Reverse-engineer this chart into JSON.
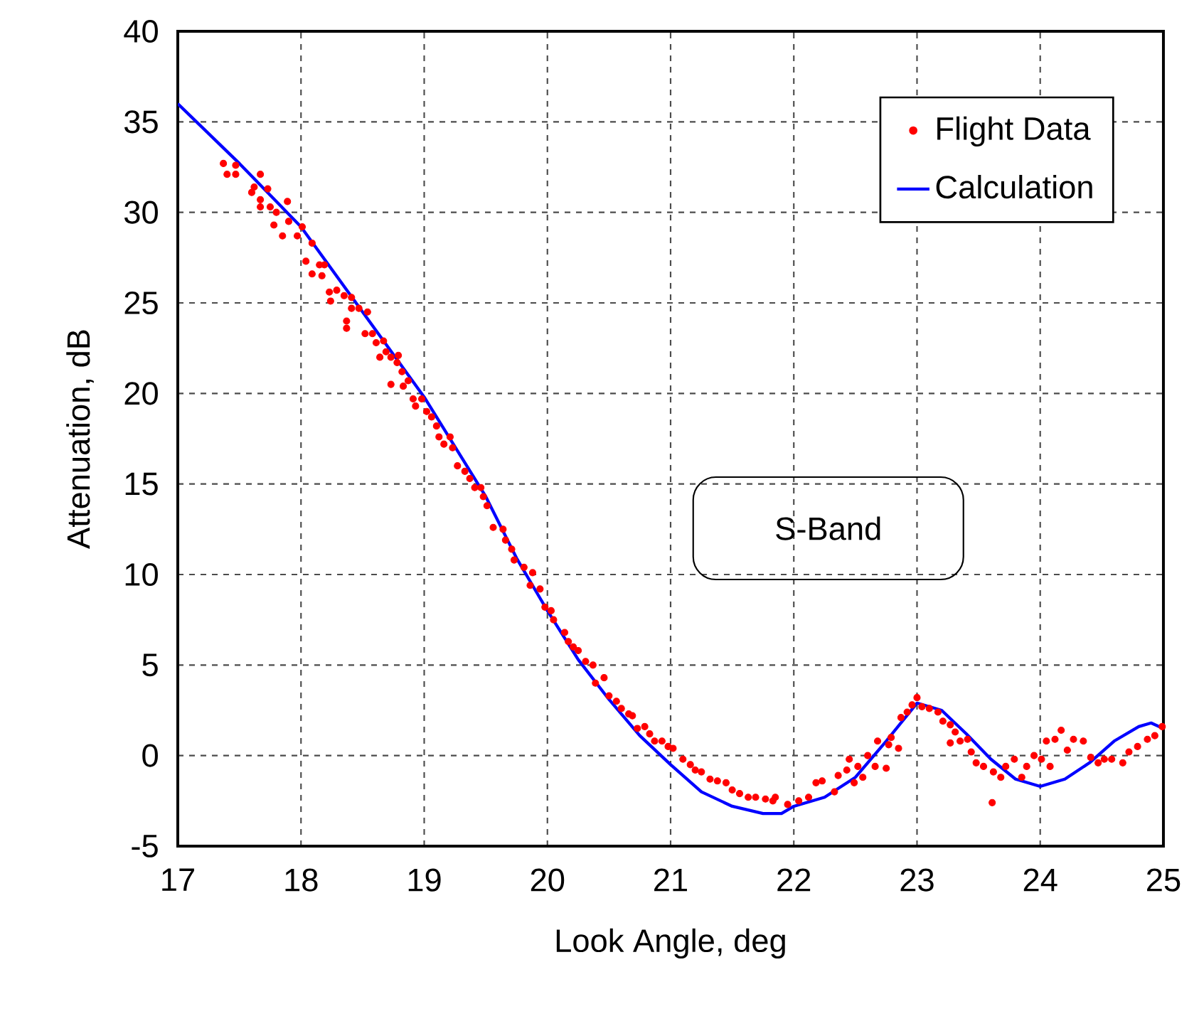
{
  "chart_data": {
    "type": "scatter",
    "xlabel": "Look Angle, deg",
    "ylabel": "Attenuation, dB",
    "xlim": [
      17,
      25
    ],
    "xticks": [
      17,
      18,
      19,
      20,
      21,
      22,
      23,
      24,
      25
    ],
    "ylim": [
      -5,
      40
    ],
    "yticks": [
      -5,
      0,
      5,
      10,
      15,
      20,
      25,
      30,
      35,
      40
    ],
    "grid": true,
    "legend": "top right",
    "annotations": [
      "S-Band"
    ],
    "series": [
      {
        "name": "Flight Data",
        "marker": "circle",
        "color": "#ff0000",
        "x": [
          17.37,
          17.47,
          17.4,
          17.47,
          17.67,
          17.62,
          17.6,
          17.73,
          17.67,
          17.67,
          17.75,
          17.89,
          17.8,
          17.78,
          17.85,
          17.9,
          17.97,
          18.01,
          18.09,
          18.04,
          18.15,
          18.19,
          18.09,
          18.17,
          18.23,
          18.29,
          18.24,
          18.35,
          18.41,
          18.37,
          18.37,
          18.41,
          18.47,
          18.54,
          18.52,
          18.58,
          18.61,
          18.67,
          18.64,
          18.69,
          18.73,
          18.79,
          18.78,
          18.73,
          18.82,
          18.83,
          18.87,
          18.91,
          18.98,
          18.93,
          19.02,
          19.06,
          19.1,
          19.12,
          19.21,
          19.16,
          19.23,
          19.27,
          19.33,
          19.37,
          19.41,
          19.46,
          19.48,
          19.51,
          19.56,
          19.64,
          19.66,
          19.71,
          19.73,
          19.81,
          19.88,
          19.86,
          19.94,
          19.98,
          20.03,
          20.05,
          20.14,
          20.17,
          20.21,
          20.25,
          20.31,
          20.37,
          20.39,
          20.46,
          20.5,
          20.56,
          20.6,
          20.66,
          20.69,
          20.73,
          20.79,
          20.83,
          20.87,
          20.93,
          20.98,
          21.02,
          21.1,
          21.16,
          21.2,
          21.25,
          21.32,
          21.38,
          21.45,
          21.5,
          21.56,
          21.63,
          21.69,
          21.77,
          21.85,
          21.83,
          21.95,
          22.04,
          22.12,
          22.18,
          22.23,
          22.33,
          22.36,
          22.43,
          22.45,
          22.49,
          22.52,
          22.56,
          22.6,
          22.66,
          22.68,
          22.75,
          22.77,
          22.79,
          22.85,
          22.87,
          22.92,
          22.96,
          23.0,
          23.04,
          23.1,
          23.17,
          23.21,
          23.27,
          23.27,
          23.31,
          23.35,
          23.41,
          23.44,
          23.48,
          23.54,
          23.61,
          23.62,
          23.68,
          23.72,
          23.79,
          23.85,
          23.89,
          23.95,
          24.01,
          24.05,
          24.08,
          24.12,
          24.17,
          24.22,
          24.27,
          24.35,
          24.41,
          24.47,
          24.52,
          24.58,
          24.67,
          24.72,
          24.79,
          24.87,
          24.93,
          24.99
        ],
        "values": [
          32.7,
          32.6,
          32.1,
          32.1,
          32.1,
          31.4,
          31.1,
          31.3,
          30.7,
          30.3,
          30.3,
          30.6,
          30.0,
          29.3,
          28.7,
          29.5,
          28.7,
          29.2,
          28.3,
          27.3,
          27.1,
          27.1,
          26.6,
          26.5,
          25.6,
          25.7,
          25.1,
          25.4,
          25.3,
          24.0,
          23.6,
          24.7,
          24.7,
          24.5,
          23.3,
          23.3,
          22.8,
          22.9,
          22.0,
          22.3,
          22.0,
          22.1,
          21.7,
          20.5,
          21.2,
          20.4,
          20.7,
          19.7,
          19.7,
          19.3,
          19.0,
          18.7,
          18.2,
          17.6,
          17.6,
          17.2,
          17.0,
          16.0,
          15.7,
          15.3,
          14.8,
          14.8,
          14.3,
          13.8,
          12.6,
          12.5,
          11.9,
          11.4,
          10.8,
          10.4,
          10.1,
          9.4,
          9.2,
          8.2,
          8.0,
          7.5,
          6.8,
          6.3,
          6.0,
          5.8,
          5.2,
          5.0,
          4.0,
          4.3,
          3.3,
          3.0,
          2.6,
          2.3,
          2.2,
          1.5,
          1.6,
          1.2,
          0.8,
          0.8,
          0.5,
          0.4,
          -0.2,
          -0.5,
          -0.8,
          -0.9,
          -1.3,
          -1.4,
          -1.5,
          -1.9,
          -2.1,
          -2.3,
          -2.3,
          -2.4,
          -2.3,
          -2.5,
          -2.7,
          -2.5,
          -2.3,
          -1.5,
          -1.4,
          -2.0,
          -1.1,
          -0.8,
          -0.2,
          -1.5,
          -0.6,
          -1.2,
          0.0,
          -0.6,
          0.8,
          -0.7,
          0.6,
          1.0,
          0.4,
          2.1,
          2.4,
          2.8,
          3.2,
          2.7,
          2.6,
          2.4,
          1.9,
          1.7,
          0.7,
          1.3,
          0.8,
          0.9,
          0.2,
          -0.4,
          -0.6,
          -2.6,
          -0.9,
          -1.2,
          -0.6,
          -0.2,
          -1.2,
          -0.6,
          0.0,
          -0.2,
          0.8,
          -0.6,
          0.9,
          1.4,
          0.3,
          0.9,
          0.8,
          -0.1,
          -0.4,
          -0.2,
          -0.2,
          -0.4,
          0.2,
          0.5,
          0.9,
          1.1,
          1.6
        ]
      },
      {
        "name": "Calculation",
        "type": "line",
        "marker": "none",
        "line_style": "solid",
        "color": "#0000ff",
        "x": [
          17,
          17.5,
          18,
          18.5,
          19,
          19.5,
          19.75,
          20,
          20.25,
          20.5,
          20.75,
          21,
          21.25,
          21.5,
          21.75,
          21.9,
          22,
          22.25,
          22.5,
          22.75,
          23,
          23.2,
          23.4,
          23.6,
          23.8,
          24,
          24.2,
          24.4,
          24.6,
          24.8,
          24.9,
          25
        ],
        "values": [
          36,
          32.7,
          29.2,
          24.5,
          19.8,
          14.3,
          10.9,
          8.0,
          5.3,
          3.1,
          1.1,
          -0.5,
          -2.0,
          -2.8,
          -3.2,
          -3.2,
          -2.8,
          -2.3,
          -1.2,
          0.8,
          2.9,
          2.5,
          1.2,
          -0.2,
          -1.3,
          -1.7,
          -1.3,
          -0.4,
          0.8,
          1.6,
          1.8,
          1.5
        ]
      }
    ]
  }
}
